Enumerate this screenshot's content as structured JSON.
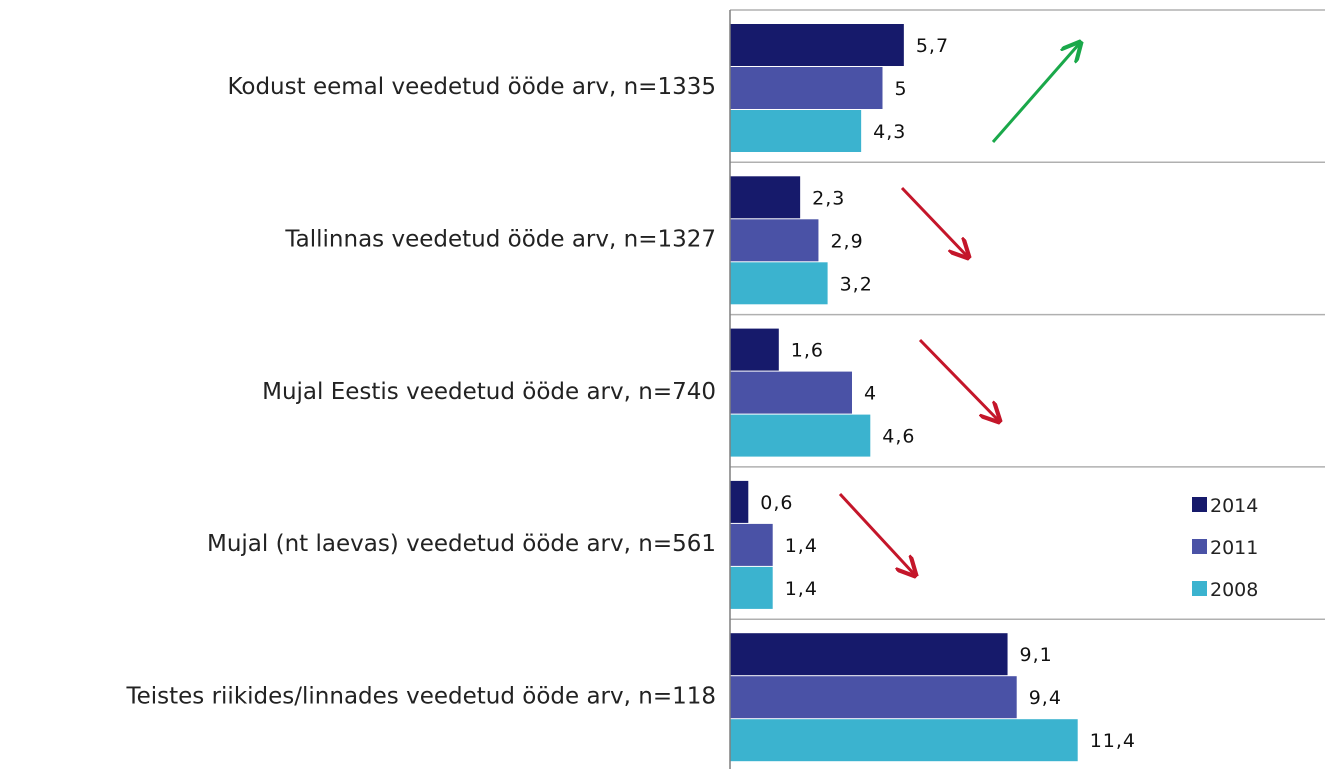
{
  "chart_data": {
    "type": "bar",
    "orientation": "horizontal",
    "categories": [
      "Kodust eemal veedetud ööde arv, n=1335",
      "Tallinnas veedetud ööde arv, n=1327",
      "Mujal Eestis veedetud ööde arv,   n=740",
      "Mujal (nt laevas) veedetud ööde arv,   n=561",
      "Teistes riikides/linnades veedetud ööde arv,   n=118"
    ],
    "series": [
      {
        "name": "2014",
        "color": "#161a6b",
        "values": [
          5.7,
          2.3,
          1.6,
          0.6,
          9.1
        ],
        "labels": [
          "5,7",
          "2,3",
          "1,6",
          "0,6",
          "9,1"
        ]
      },
      {
        "name": "2011",
        "color": "#4a52a6",
        "values": [
          5,
          2.9,
          4,
          1.4,
          9.4
        ],
        "labels": [
          "5",
          "2,9",
          "4",
          "1,4",
          "9,4"
        ]
      },
      {
        "name": "2008",
        "color": "#3bb3cf",
        "values": [
          4.3,
          3.2,
          4.6,
          1.4,
          11.4
        ],
        "labels": [
          "4,3",
          "3,2",
          "4,6",
          "1,4",
          "11,4"
        ]
      }
    ],
    "trend_arrows": [
      {
        "direction": "up",
        "color": "#1aa84a"
      },
      {
        "direction": "down",
        "color": "#c4162a"
      },
      {
        "direction": "down",
        "color": "#c4162a"
      },
      {
        "direction": "down",
        "color": "#c4162a"
      }
    ],
    "legend_position": "right",
    "grid": "horizontal separators between categories",
    "xlim": [
      0,
      11.4
    ]
  }
}
